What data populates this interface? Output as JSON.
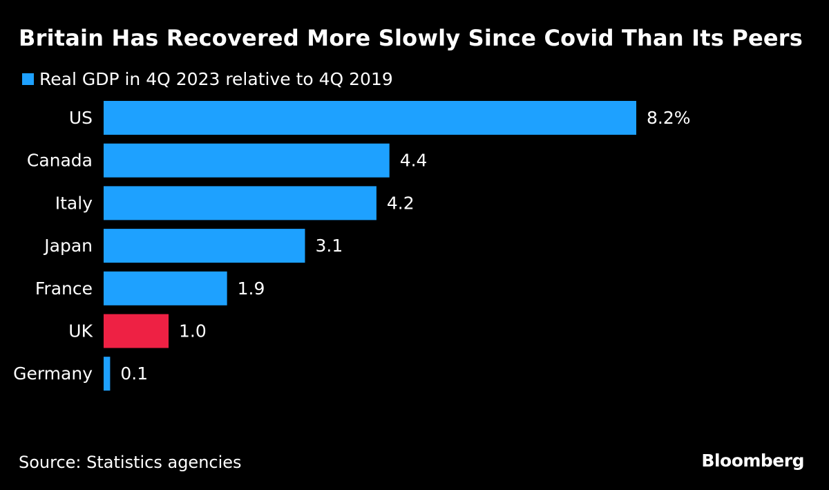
{
  "chart_data": {
    "type": "bar",
    "orientation": "horizontal",
    "title": "Britain Has Recovered More Slowly Since Covid Than Its Peers",
    "legend": [
      {
        "label": "Real GDP in 4Q 2023 relative to 4Q 2019",
        "color": "#1ea1ff"
      }
    ],
    "categories": [
      "US",
      "Canada",
      "Italy",
      "Japan",
      "France",
      "UK",
      "Germany"
    ],
    "values": [
      8.2,
      4.4,
      4.2,
      3.1,
      1.9,
      1.0,
      0.1
    ],
    "value_labels": [
      "8.2%",
      "4.4",
      "4.2",
      "3.1",
      "1.9",
      "1.0",
      "0.1"
    ],
    "bar_colors": [
      "#1ea1ff",
      "#1ea1ff",
      "#1ea1ff",
      "#1ea1ff",
      "#1ea1ff",
      "#ee2144",
      "#1ea1ff"
    ],
    "highlight_category": "UK",
    "xlim": [
      0,
      8.2
    ],
    "xlabel": "",
    "ylabel": "",
    "grid": false
  },
  "footer": {
    "source": "Source: Statistics agencies",
    "brand": "Bloomberg"
  }
}
